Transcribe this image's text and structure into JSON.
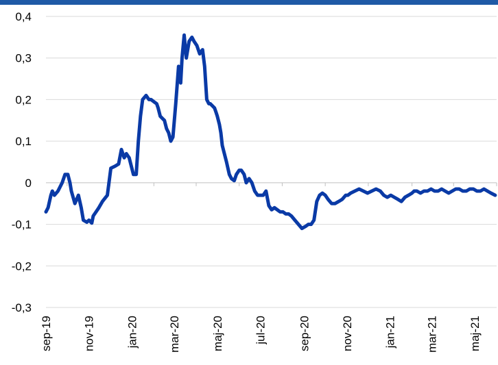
{
  "colors": {
    "accent_bar": "#1f5aa6",
    "series": "#0a3aa6",
    "grid": "#d9d9d9",
    "axis": "#bfbfbf",
    "text": "#000000"
  },
  "chart_data": {
    "type": "line",
    "title": "",
    "xlabel": "",
    "ylabel": "",
    "ylim": [
      -0.3,
      0.4
    ],
    "y_ticks": [
      0.4,
      0.3,
      0.2,
      0.1,
      0,
      -0.1,
      -0.2,
      -0.3
    ],
    "y_tick_labels": [
      "0,4",
      "0,3",
      "0,2",
      "0,1",
      "0",
      "-0,1",
      "-0,2",
      "-0,3"
    ],
    "x_tick_labels": [
      "sep-19",
      "nov-19",
      "jan-20",
      "mar-20",
      "maj-20",
      "jul-20",
      "sep-20",
      "nov-20",
      "jan-21",
      "mar-21",
      "maj-21"
    ],
    "grid": true,
    "legend": "none",
    "x_start": "2019-09",
    "x_end": "2021-06",
    "series": [
      {
        "x": [
          "2019-09-01",
          "2019-09-04",
          "2019-09-08",
          "2019-09-10",
          "2019-09-13",
          "2019-09-18",
          "2019-09-24",
          "2019-09-28",
          "2019-10-02",
          "2019-10-05",
          "2019-10-07",
          "2019-10-12",
          "2019-10-17",
          "2019-10-21",
          "2019-10-24",
          "2019-10-29",
          "2019-11-01",
          "2019-11-05",
          "2019-11-07",
          "2019-11-11",
          "2019-11-15",
          "2019-11-20",
          "2019-11-27",
          "2019-12-02",
          "2019-12-08",
          "2019-12-13",
          "2019-12-17",
          "2019-12-21",
          "2019-12-24",
          "2019-12-28",
          "2020-01-03",
          "2020-01-07",
          "2020-01-10",
          "2020-01-13",
          "2020-01-16",
          "2020-01-21",
          "2020-01-25",
          "2020-01-28",
          "2020-02-01",
          "2020-02-05",
          "2020-02-07",
          "2020-02-10",
          "2020-02-13",
          "2020-02-16",
          "2020-02-19",
          "2020-02-22",
          "2020-02-25",
          "2020-02-28",
          "2020-03-03",
          "2020-03-07",
          "2020-03-10",
          "2020-03-12",
          "2020-03-15",
          "2020-03-18",
          "2020-03-22",
          "2020-03-26",
          "2020-03-29",
          "2020-04-02",
          "2020-04-06",
          "2020-04-10",
          "2020-04-13",
          "2020-04-16",
          "2020-04-19",
          "2020-04-21",
          "2020-04-24",
          "2020-04-27",
          "2020-04-29",
          "2020-05-01",
          "2020-05-04",
          "2020-05-06",
          "2020-05-08",
          "2020-05-11",
          "2020-05-14",
          "2020-05-18",
          "2020-05-21",
          "2020-05-25",
          "2020-05-28",
          "2020-06-01",
          "2020-06-04",
          "2020-06-08",
          "2020-06-11",
          "2020-06-15",
          "2020-06-19",
          "2020-06-23",
          "2020-06-27",
          "2020-07-01",
          "2020-07-05",
          "2020-07-09",
          "2020-07-13",
          "2020-07-17",
          "2020-07-21",
          "2020-07-25",
          "2020-07-29",
          "2020-08-02",
          "2020-08-06",
          "2020-08-10",
          "2020-08-14",
          "2020-08-19",
          "2020-08-24",
          "2020-08-29",
          "2020-09-03",
          "2020-09-07",
          "2020-09-11",
          "2020-09-15",
          "2020-09-19",
          "2020-09-23",
          "2020-09-27",
          "2020-10-01",
          "2020-10-05",
          "2020-10-10",
          "2020-10-15",
          "2020-10-20",
          "2020-10-25",
          "2020-10-30",
          "2020-11-02",
          "2020-11-06",
          "2020-11-12",
          "2020-11-18",
          "2020-11-24",
          "2020-11-30",
          "2020-12-06",
          "2020-12-12",
          "2020-12-18",
          "2020-12-23",
          "2020-12-28",
          "2021-01-02",
          "2021-01-07",
          "2021-01-12",
          "2021-01-17",
          "2021-01-22",
          "2021-01-27",
          "2021-02-01",
          "2021-02-04",
          "2021-02-08",
          "2021-02-13",
          "2021-02-18",
          "2021-02-23",
          "2021-02-28",
          "2021-03-05",
          "2021-03-10",
          "2021-03-15",
          "2021-03-20",
          "2021-03-25",
          "2021-03-30",
          "2021-04-04",
          "2021-04-09",
          "2021-04-14",
          "2021-04-19",
          "2021-04-24",
          "2021-04-29",
          "2021-05-04",
          "2021-05-09",
          "2021-05-14",
          "2021-05-19",
          "2021-05-24",
          "2021-05-30"
        ],
        "values": [
          -0.07,
          -0.06,
          -0.03,
          -0.02,
          -0.03,
          -0.02,
          0.0,
          0.02,
          0.02,
          0.0,
          -0.02,
          -0.05,
          -0.03,
          -0.06,
          -0.09,
          -0.095,
          -0.09,
          -0.097,
          -0.08,
          -0.07,
          -0.06,
          -0.045,
          -0.03,
          0.035,
          0.04,
          0.045,
          0.08,
          0.06,
          0.07,
          0.06,
          0.02,
          0.02,
          0.1,
          0.16,
          0.2,
          0.21,
          0.2,
          0.2,
          0.195,
          0.19,
          0.18,
          0.16,
          0.155,
          0.15,
          0.13,
          0.12,
          0.1,
          0.11,
          0.19,
          0.28,
          0.24,
          0.3,
          0.355,
          0.3,
          0.34,
          0.35,
          0.34,
          0.33,
          0.31,
          0.32,
          0.28,
          0.2,
          0.19,
          0.19,
          0.185,
          0.18,
          0.17,
          0.16,
          0.14,
          0.12,
          0.09,
          0.07,
          0.05,
          0.02,
          0.01,
          0.005,
          0.02,
          0.03,
          0.03,
          0.02,
          0.0,
          0.01,
          0.0,
          -0.02,
          -0.03,
          -0.03,
          -0.03,
          -0.02,
          -0.055,
          -0.065,
          -0.06,
          -0.065,
          -0.07,
          -0.07,
          -0.075,
          -0.075,
          -0.08,
          -0.09,
          -0.1,
          -0.11,
          -0.105,
          -0.1,
          -0.1,
          -0.09,
          -0.045,
          -0.03,
          -0.025,
          -0.03,
          -0.04,
          -0.05,
          -0.05,
          -0.045,
          -0.04,
          -0.03,
          -0.03,
          -0.025,
          -0.02,
          -0.015,
          -0.02,
          -0.025,
          -0.02,
          -0.015,
          -0.02,
          -0.03,
          -0.035,
          -0.03,
          -0.035,
          -0.04,
          -0.045,
          -0.035,
          -0.03,
          -0.025,
          -0.02,
          -0.02,
          -0.025,
          -0.02,
          -0.02,
          -0.015,
          -0.02,
          -0.02,
          -0.015,
          -0.02,
          -0.025,
          -0.02,
          -0.015,
          -0.015,
          -0.02,
          -0.02,
          -0.015,
          -0.015,
          -0.02,
          -0.02,
          -0.015,
          -0.02,
          -0.025,
          -0.03
        ]
      }
    ]
  }
}
